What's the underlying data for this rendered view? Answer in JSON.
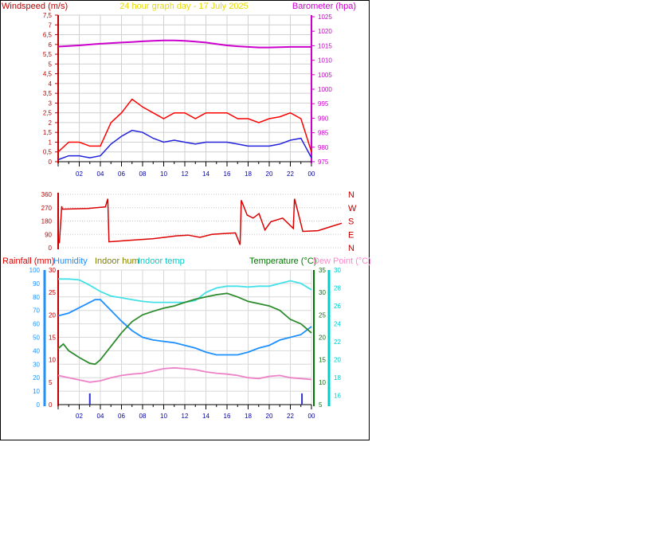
{
  "chart_data": [
    {
      "type": "line",
      "title": "24 hour graph day - 17 July 2025",
      "ylabel": "Windspeed (m/s)",
      "y2label": "Barometer (hpa)",
      "x_ticks": [
        "02",
        "04",
        "06",
        "08",
        "10",
        "12",
        "14",
        "16",
        "18",
        "20",
        "22",
        "00"
      ],
      "y_ticks": [
        "0",
        "0,5",
        "1",
        "1,5",
        "2",
        "2,5",
        "3",
        "3,5",
        "4",
        "4,5",
        "5",
        "5,5",
        "6",
        "6,5",
        "7",
        "7,5"
      ],
      "ylim": [
        0,
        7.5
      ],
      "y2_ticks": [
        "975",
        "980",
        "985",
        "990",
        "995",
        "1000",
        "1005",
        "1010",
        "1015",
        "1020",
        "1025"
      ],
      "y2lim": [
        975,
        1025
      ],
      "grid": true,
      "colors": {
        "gust": "#ff0000",
        "average": "#2222dd",
        "barometer": "#cc00cc",
        "title": "#e8d800"
      },
      "series": [
        {
          "name": "Barometer",
          "axis": "right",
          "x": [
            0,
            1,
            2,
            3,
            4,
            5,
            6,
            7,
            8,
            9,
            10,
            11,
            12,
            13,
            14,
            15,
            16,
            17,
            18,
            19,
            20,
            21,
            22,
            23,
            24
          ],
          "values": [
            1014.7,
            1014.9,
            1015.1,
            1015.4,
            1015.7,
            1015.9,
            1016.1,
            1016.3,
            1016.5,
            1016.7,
            1016.8,
            1016.8,
            1016.7,
            1016.4,
            1016.1,
            1015.6,
            1015.1,
            1014.8,
            1014.6,
            1014.4,
            1014.4,
            1014.5,
            1014.6,
            1014.6,
            1014.6
          ]
        },
        {
          "name": "Gust",
          "axis": "left",
          "x": [
            0,
            1,
            2,
            3,
            4,
            5,
            6,
            7,
            8,
            9,
            10,
            11,
            12,
            13,
            14,
            15,
            16,
            17,
            18,
            19,
            20,
            21,
            22,
            23,
            24
          ],
          "values": [
            0.5,
            1.0,
            1.0,
            0.8,
            0.8,
            2.0,
            2.5,
            3.2,
            2.8,
            2.5,
            2.2,
            2.5,
            2.5,
            2.2,
            2.5,
            2.5,
            2.5,
            2.2,
            2.2,
            2.0,
            2.2,
            2.3,
            2.5,
            2.2,
            0.5
          ]
        },
        {
          "name": "Average",
          "axis": "left",
          "x": [
            0,
            1,
            2,
            3,
            4,
            5,
            6,
            7,
            8,
            9,
            10,
            11,
            12,
            13,
            14,
            15,
            16,
            17,
            18,
            19,
            20,
            21,
            22,
            23,
            24
          ],
          "values": [
            0.1,
            0.3,
            0.3,
            0.2,
            0.3,
            0.9,
            1.3,
            1.6,
            1.5,
            1.2,
            1.0,
            1.1,
            1.0,
            0.9,
            1.0,
            1.0,
            1.0,
            0.9,
            0.8,
            0.8,
            0.8,
            0.9,
            1.1,
            1.2,
            0.2
          ]
        }
      ]
    },
    {
      "type": "line",
      "ylabel": "",
      "y_ticks": [
        "0",
        "90",
        "180",
        "270",
        "360"
      ],
      "ylim": [
        0,
        360
      ],
      "y2_ticks": [
        "N",
        "W",
        "S",
        "E",
        "N"
      ],
      "grid": true,
      "colors": {
        "direction": "#dd0000"
      },
      "series": [
        {
          "name": "Wind direction",
          "x": [
            0.1,
            0.3,
            0.35,
            2.5,
            4.0,
            4.2,
            4.3,
            6,
            8,
            9,
            10,
            11,
            12,
            13,
            14,
            15,
            15.4,
            15.5,
            16,
            16.5,
            17,
            17.5,
            18,
            19,
            19.9,
            20.0,
            20.3,
            20.7,
            22,
            23,
            24
          ],
          "values": [
            30,
            280,
            260,
            265,
            275,
            330,
            40,
            50,
            60,
            70,
            80,
            85,
            70,
            90,
            95,
            100,
            20,
            320,
            220,
            200,
            230,
            120,
            175,
            200,
            130,
            330,
            240,
            110,
            115,
            140,
            165
          ]
        }
      ]
    },
    {
      "type": "line",
      "y_ticks": [
        "0",
        "10",
        "20",
        "30",
        "40",
        "50",
        "60",
        "70",
        "80",
        "90",
        "100"
      ],
      "ylim": [
        0,
        100
      ],
      "rain_ticks": [
        "0",
        "5",
        "10",
        "15",
        "20",
        "25",
        "30"
      ],
      "rain_lim": [
        0,
        30
      ],
      "temp_ticks": [
        "5",
        "10",
        "15",
        "20",
        "25",
        "30",
        "35"
      ],
      "temp_lim": [
        5,
        35
      ],
      "indoor_ticks": [
        "16",
        "18",
        "20",
        "22",
        "24",
        "26",
        "28",
        "30"
      ],
      "indoor_lim": [
        15,
        30
      ],
      "grid": true,
      "legend": [
        {
          "label": "Rainfall (mm)",
          "color": "#dd0000"
        },
        {
          "label": "Humidity",
          "color": "#1e90ff"
        },
        {
          "label": "Indoor hum",
          "color": "#808000"
        },
        {
          "label": "Indoor temp",
          "color": "#00cccc"
        },
        {
          "label": "Temperature (°C)",
          "color": "#007700"
        },
        {
          "label": "Dew Point (°C)",
          "color": "#ff88cc"
        }
      ],
      "series": [
        {
          "name": "Indoor temp",
          "axis": "indoor",
          "x": [
            0,
            1,
            2,
            3,
            4,
            5,
            6,
            7,
            8,
            9,
            10,
            11,
            12,
            13,
            14,
            15,
            16,
            17,
            18,
            19,
            20,
            21,
            22,
            23,
            24
          ],
          "values": [
            29,
            29,
            28.9,
            28.3,
            27.6,
            27.1,
            26.9,
            26.7,
            26.5,
            26.4,
            26.4,
            26.4,
            26.4,
            26.6,
            27.5,
            28.0,
            28.2,
            28.2,
            28.1,
            28.2,
            28.2,
            28.5,
            28.8,
            28.5,
            27.8
          ]
        },
        {
          "name": "Humidity",
          "axis": "left",
          "x": [
            0,
            1,
            2,
            3,
            3.5,
            4,
            5,
            6,
            7,
            8,
            9,
            10,
            11,
            12,
            13,
            14,
            15,
            16,
            17,
            18,
            19,
            20,
            21,
            22,
            23,
            24
          ],
          "values": [
            66,
            68,
            72,
            76,
            78,
            78,
            70,
            62,
            55,
            50,
            48,
            47,
            46,
            44,
            42,
            39,
            37,
            37,
            37,
            39,
            42,
            44,
            48,
            50,
            52,
            58
          ]
        },
        {
          "name": "Temperature",
          "axis": "temp",
          "x": [
            0,
            0.5,
            1,
            2,
            3,
            3.5,
            4,
            5,
            6,
            7,
            8,
            9,
            10,
            11,
            12,
            13,
            14,
            15,
            16,
            17,
            18,
            19,
            20,
            21,
            22,
            23,
            24
          ],
          "values": [
            17.5,
            18.5,
            17,
            15.5,
            14.2,
            14.0,
            15.0,
            18.0,
            21.0,
            23.5,
            25.0,
            25.8,
            26.5,
            27.0,
            27.8,
            28.5,
            29.0,
            29.5,
            29.8,
            29.0,
            28.0,
            27.5,
            27.0,
            26.0,
            24.0,
            23.0,
            21.0
          ]
        },
        {
          "name": "Dew Point",
          "axis": "temp",
          "x": [
            0,
            1,
            2,
            3,
            4,
            5,
            6,
            7,
            8,
            9,
            10,
            11,
            12,
            13,
            14,
            15,
            16,
            17,
            18,
            19,
            20,
            21,
            22,
            23,
            24
          ],
          "values": [
            11.5,
            11.0,
            10.5,
            10.0,
            10.3,
            11.0,
            11.5,
            11.8,
            12.0,
            12.5,
            13.0,
            13.2,
            13.0,
            12.8,
            12.3,
            12.0,
            11.8,
            11.5,
            11.0,
            10.8,
            11.3,
            11.5,
            11.0,
            10.8,
            10.6
          ]
        },
        {
          "name": "Rainfall",
          "axis": "rain",
          "type": "bar",
          "x": [
            3.0,
            23.1
          ],
          "values": [
            2.5,
            2.5
          ]
        }
      ]
    }
  ]
}
